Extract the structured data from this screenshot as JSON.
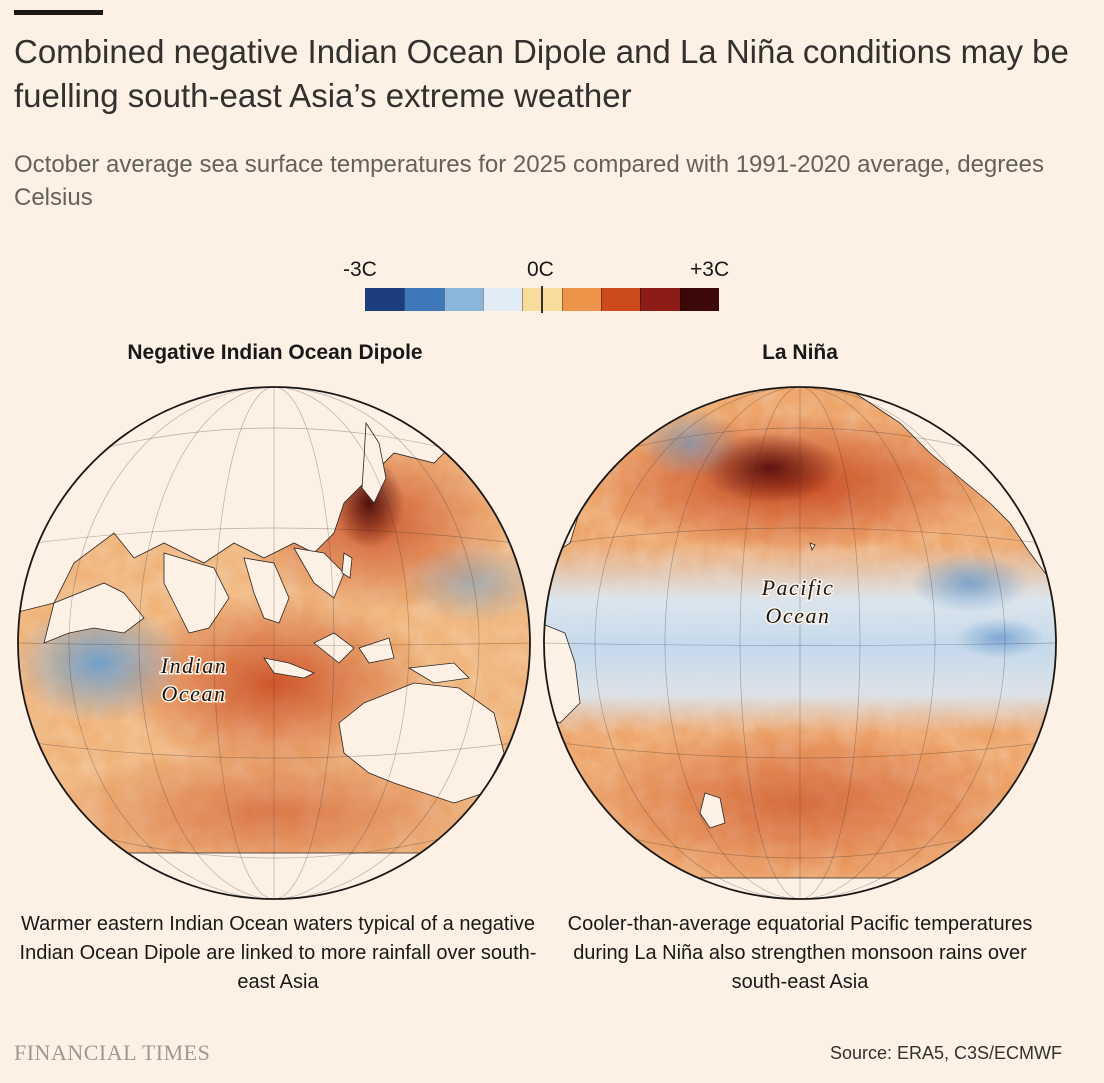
{
  "header": {
    "title": "Combined negative Indian Ocean Dipole and La Niña conditions may be fuelling south-east Asia’s extreme weather",
    "subtitle": "October average sea surface temperatures for 2025 compared with 1991-2020 average, degrees Celsius"
  },
  "legend": {
    "min_label": "-3C",
    "mid_label": "0C",
    "max_label": "+3C",
    "range": [
      -3,
      3
    ],
    "colors": [
      "#1d3e7e",
      "#3f78b9",
      "#8ab6dc",
      "#e2ecf5",
      "#f7dc9b",
      "#ec9548",
      "#cc4a1c",
      "#8e1c16",
      "#3d0808"
    ]
  },
  "panels": [
    {
      "title": "Negative Indian Ocean Dipole",
      "ocean_label_line1": "Indian",
      "ocean_label_line2": "Ocean",
      "caption": "Warmer eastern Indian Ocean waters typical of a negative Indian Ocean Dipole are linked to more rainfall over south-east Asia"
    },
    {
      "title": "La Niña",
      "ocean_label_line1": "Pacific",
      "ocean_label_line2": "Ocean",
      "caption": "Cooler-than-average equatorial Pacific temperatures during La Niña also strengthen monsoon rains over south-east Asia"
    }
  ],
  "footer": {
    "brand": "FINANCIAL TIMES",
    "source": "Source: ERA5, C3S/ECMWF"
  }
}
